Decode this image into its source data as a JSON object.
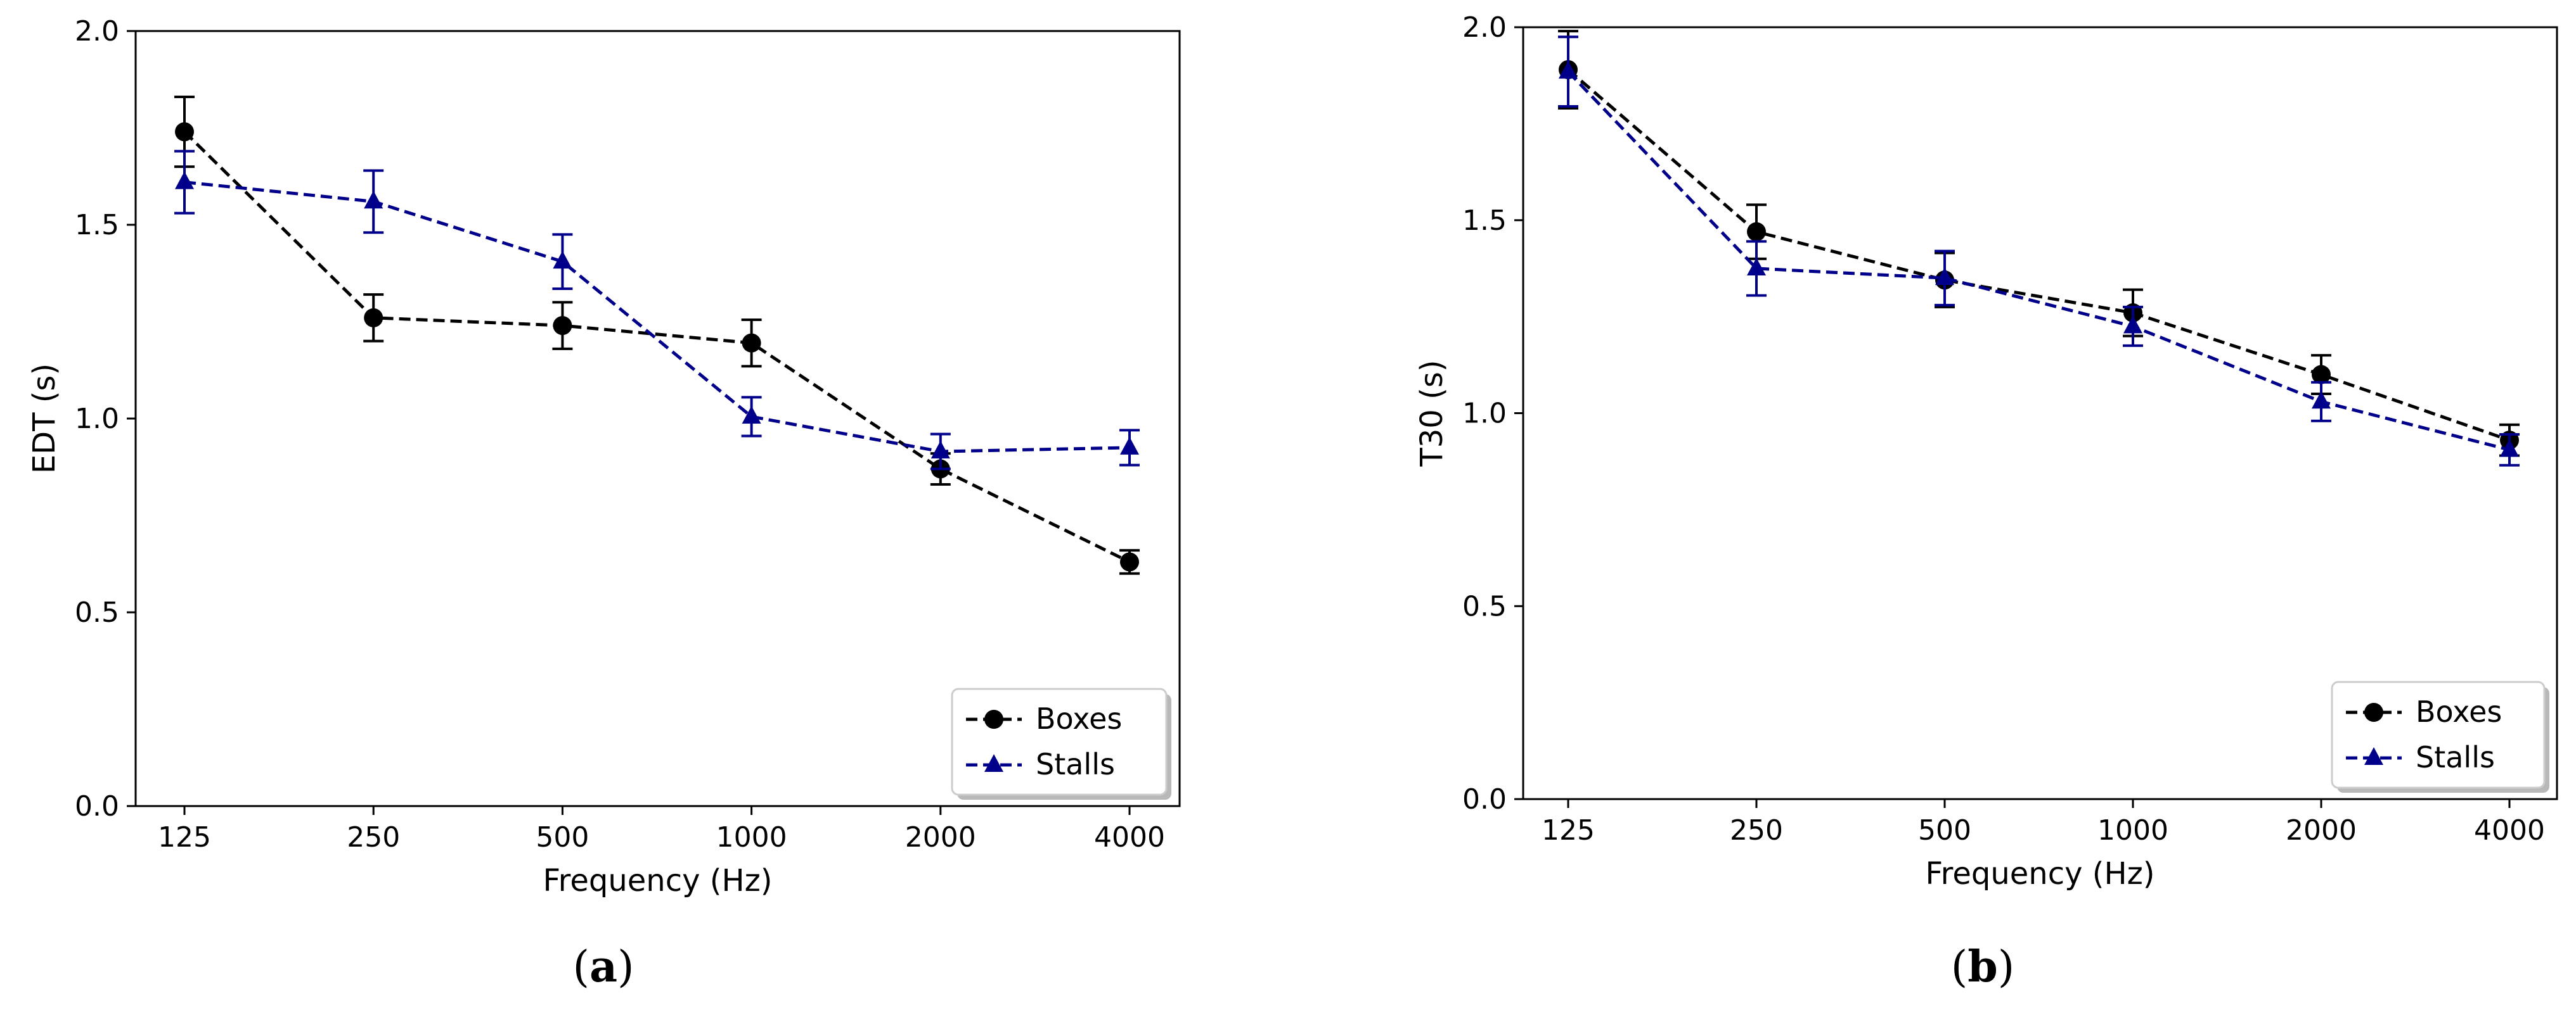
{
  "chart_data": [
    {
      "type": "line",
      "panel_label": "(a)",
      "panel_letter": "a",
      "xlabel": "Frequency (Hz)",
      "ylabel": "EDT (s)",
      "categories": [
        "125",
        "250",
        "500",
        "1000",
        "2000",
        "4000"
      ],
      "ylim": [
        0.0,
        2.0
      ],
      "yticks": [
        "0.0",
        "0.5",
        "1.0",
        "1.5",
        "2.0"
      ],
      "grid": false,
      "legend_position": "bottom-right",
      "series": [
        {
          "name": "Boxes",
          "color": "#000000",
          "marker": "circle",
          "line_style": "dashed",
          "values": [
            1.74,
            1.26,
            1.24,
            1.195,
            0.87,
            0.63
          ],
          "errors": [
            0.09,
            0.06,
            0.06,
            0.06,
            0.04,
            0.03
          ]
        },
        {
          "name": "Stalls",
          "color": "#00008b",
          "marker": "triangle",
          "line_style": "dashed",
          "values": [
            1.61,
            1.56,
            1.405,
            1.005,
            0.915,
            0.925
          ],
          "errors": [
            0.08,
            0.08,
            0.07,
            0.05,
            0.045,
            0.045
          ]
        }
      ]
    },
    {
      "type": "line",
      "panel_label": "(b)",
      "panel_letter": "b",
      "xlabel": "Frequency (Hz)",
      "ylabel": "T30 (s)",
      "categories": [
        "125",
        "250",
        "500",
        "1000",
        "2000",
        "4000"
      ],
      "ylim": [
        0.0,
        2.0
      ],
      "yticks": [
        "0.0",
        "0.5",
        "1.0",
        "1.5",
        "2.0"
      ],
      "grid": false,
      "legend_position": "bottom-right",
      "series": [
        {
          "name": "Boxes",
          "color": "#000000",
          "marker": "circle",
          "line_style": "dashed",
          "values": [
            1.89,
            1.47,
            1.345,
            1.26,
            1.1,
            0.93
          ],
          "errors": [
            0.1,
            0.07,
            0.07,
            0.06,
            0.05,
            0.04
          ]
        },
        {
          "name": "Stalls",
          "color": "#00008b",
          "marker": "triangle",
          "line_style": "dashed",
          "values": [
            1.885,
            1.375,
            1.35,
            1.225,
            1.03,
            0.905
          ],
          "errors": [
            0.09,
            0.07,
            0.07,
            0.05,
            0.05,
            0.04
          ]
        }
      ]
    }
  ]
}
